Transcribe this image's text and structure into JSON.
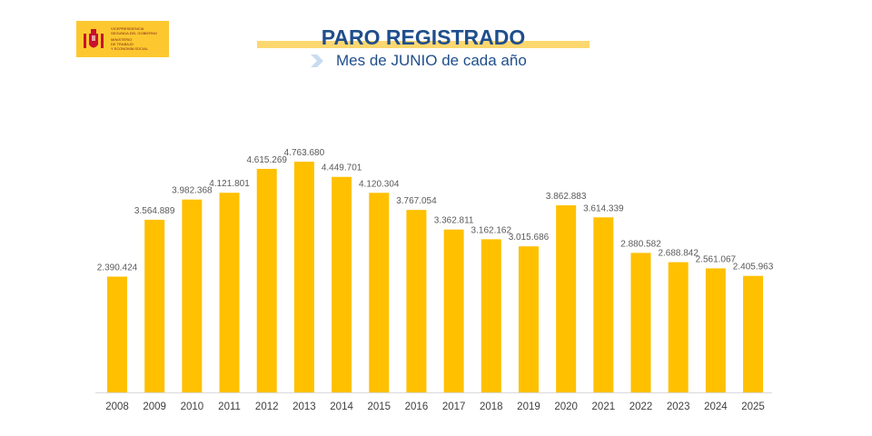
{
  "logo": {
    "lines": [
      "VICEPRESIDENCIA",
      "SEGUNDA DEL GOBIERNO",
      "MINISTERIO",
      "DE TRABAJO",
      "Y ECONOMÍA SOCIAL"
    ]
  },
  "header": {
    "title": "PARO REGISTRADO",
    "subtitle": "Mes de JUNIO de cada año"
  },
  "colors": {
    "bar": "#ffc000",
    "title": "#1f4e8c",
    "highlight": "#fcd770"
  },
  "chart_data": {
    "type": "bar",
    "title": "PARO REGISTRADO",
    "subtitle": "Mes de JUNIO de cada año",
    "categories": [
      "2008",
      "2009",
      "2010",
      "2011",
      "2012",
      "2013",
      "2014",
      "2015",
      "2016",
      "2017",
      "2018",
      "2019",
      "2020",
      "2021",
      "2022",
      "2023",
      "2024",
      "2025"
    ],
    "values": [
      2390424,
      3564889,
      3982368,
      4121801,
      4615269,
      4763680,
      4449701,
      4120304,
      3767054,
      3362811,
      3162162,
      3015686,
      3862883,
      3614339,
      2880582,
      2688842,
      2561067,
      2405963
    ],
    "labels": [
      "2.390.424",
      "3.564.889",
      "3.982.368",
      "4.121.801",
      "4.615.269",
      "4.763.680",
      "4.449.701",
      "4.120.304",
      "3.767.054",
      "3.362.811",
      "3.162.162",
      "3.015.686",
      "3.862.883",
      "3.614.339",
      "2.880.582",
      "2.688.842",
      "2.561.067",
      "2.405.963"
    ],
    "xlabel": "",
    "ylabel": "",
    "ylim": [
      0,
      4763680
    ],
    "grid": false,
    "legend": "none"
  }
}
